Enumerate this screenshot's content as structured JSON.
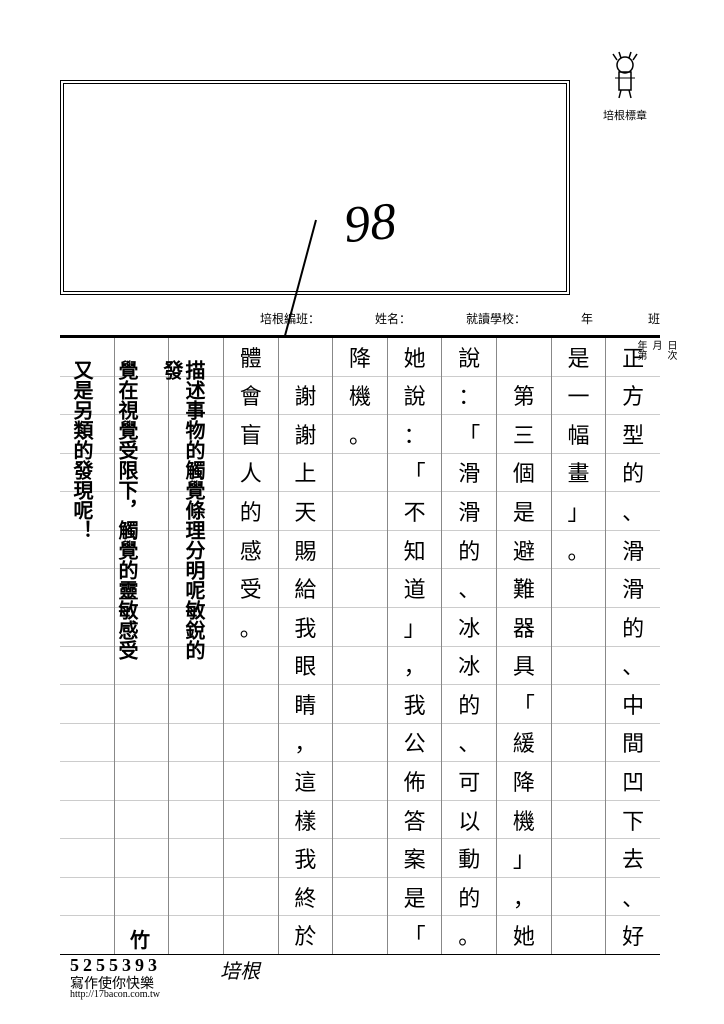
{
  "stamp": {
    "label": "培根標章"
  },
  "score": {
    "value": "98"
  },
  "header": {
    "class_label": "培根編班：",
    "name_label": "姓名：",
    "school_label": "就讀學校：",
    "grade_suffix": "年",
    "class_suffix": "班"
  },
  "grid": {
    "rows": 16,
    "columns": [
      "正方型的、滑滑的、中間凹下去、好像",
      "是一幅畫」。",
      "　第三個是避難器具「緩降機」，她",
      "說：「滑滑的、冰冰的、可以動的。」",
      "她說：「不知道」，我公佈答案是「緩",
      "降機。",
      "　謝謝上天賜給我眼睛，這樣我終於",
      "體會盲人的感受。",
      "",
      "",
      ""
    ]
  },
  "teacher_notes": {
    "line1": "又是另類的發現呢！",
    "line2": "覺在視覺受限下，觸覺的靈敏感受",
    "line3": "描述事物的觸覺條理分明呢敏銳的發",
    "mark": "竹"
  },
  "side": {
    "day": "日次",
    "month": "月",
    "year_seq": "年第"
  },
  "footer": {
    "number": "5255393",
    "slogan": "寫作使你快樂",
    "url": "http://17bacon.com.tw",
    "brand": "培根"
  },
  "colors": {
    "ink": "#000000",
    "grid_line": "#888888",
    "cell_line": "#cccccc",
    "background": "#ffffff"
  }
}
